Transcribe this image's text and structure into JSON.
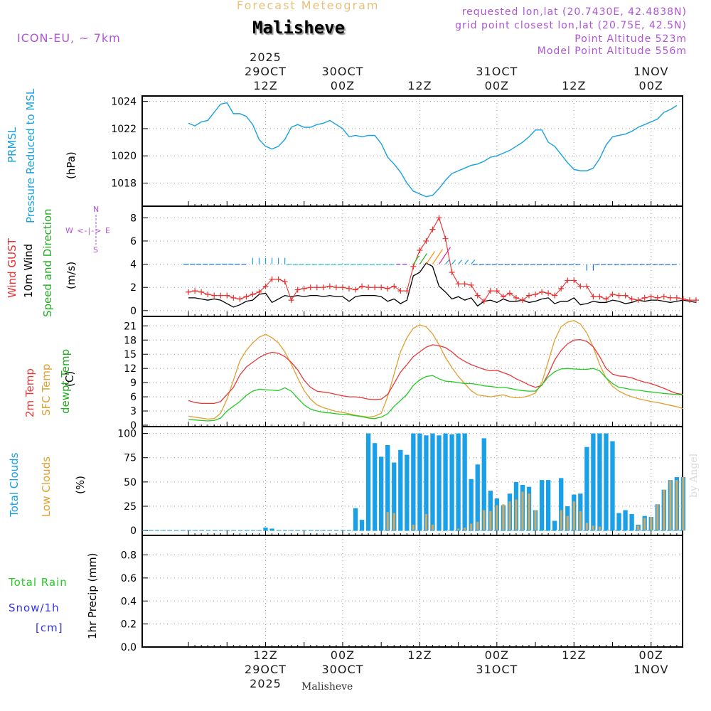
{
  "header": {
    "supertitle": "Forecast Meteogram",
    "station": "Malisheve",
    "model": "ICON-EU, ~ 7km",
    "requested": "requested lon,lat (20.7430E, 42.4838N)",
    "grid_point": "grid point closest lon,lat (20.75E, 42.5N)",
    "point_altitude": "Point Altitude 523m",
    "model_altitude": "Model Point Altitude 556m",
    "credit": "by Angel",
    "footer_station": "Malisheve"
  },
  "time_axis": {
    "top_labels": [
      {
        "h": 12,
        "lines": [
          "2025",
          "29OCT",
          "12Z"
        ]
      },
      {
        "h": 24,
        "lines": [
          "30OCT",
          "00Z"
        ]
      },
      {
        "h": 36,
        "lines": [
          "12Z"
        ]
      },
      {
        "h": 48,
        "lines": [
          "31OCT",
          "00Z"
        ]
      },
      {
        "h": 60,
        "lines": [
          "12Z"
        ]
      },
      {
        "h": 72,
        "lines": [
          "1NOV",
          "00Z"
        ]
      }
    ],
    "bottom_labels": [
      {
        "h": 12,
        "lines": [
          "12Z",
          "29OCT",
          "2025"
        ]
      },
      {
        "h": 24,
        "lines": [
          "00Z",
          "30OCT"
        ]
      },
      {
        "h": 36,
        "lines": [
          "12Z"
        ]
      },
      {
        "h": 48,
        "lines": [
          "00Z",
          "31OCT"
        ]
      },
      {
        "h": 60,
        "lines": [
          "12Z"
        ]
      },
      {
        "h": 72,
        "lines": [
          "00Z",
          "1NOV"
        ]
      }
    ]
  },
  "panel_labels": {
    "pressure": {
      "name": "PRMSL",
      "desc": "Pressure Reduced to MSL",
      "unit": "(hPa)"
    },
    "wind": {
      "gust": "Wind GUST",
      "wind10": "10m Wind",
      "dir": "Speed and Direction",
      "unit": "(m/s)",
      "compass_n": "N",
      "compass_s": "S",
      "compass_ew": "W <-|-> E"
    },
    "temp": {
      "t2m": "2m Temp",
      "sfc": "SFC Temp",
      "dew": "dewpt Temp",
      "unit": "(C)"
    },
    "clouds": {
      "total": "Total Clouds",
      "low": "Low Clouds",
      "unit": "(%)"
    },
    "precip": {
      "rain": "Total  Rain",
      "snow": "Snow/1h",
      "cm": "[cm]",
      "unit": "1hr Precip (mm)"
    }
  },
  "colors": {
    "pressure": "#19a0e0",
    "gust": "#e83030",
    "wind": "#000000",
    "t2m": "#e83838",
    "sfc": "#e0a030",
    "dew": "#22cc22",
    "total_cloud": "#1aa0e8",
    "low_cloud": "#d2a860",
    "rain": "#22cc22",
    "snow": "#3333ee",
    "compass": "#b055d5"
  },
  "chart_data": [
    {
      "type": "line",
      "title": "PRMSL Pressure Reduced to MSL",
      "ylabel": "(hPa)",
      "x_hours_from_start": [
        0,
        1,
        2,
        3,
        4,
        5,
        6,
        7,
        8,
        9,
        10,
        11,
        12,
        13,
        14,
        15,
        16,
        17,
        18,
        19,
        20,
        21,
        22,
        23,
        24,
        25,
        26,
        27,
        28,
        29,
        30,
        31,
        32,
        33,
        34,
        35,
        36,
        37,
        38,
        39,
        40,
        41,
        42,
        43,
        44,
        45,
        46,
        47,
        48,
        49,
        50,
        51,
        52,
        53,
        54,
        55,
        56,
        57,
        58,
        59,
        60,
        61,
        62,
        63,
        64,
        65,
        66,
        67,
        68,
        69,
        70,
        71,
        72,
        73,
        74,
        75,
        76
      ],
      "values": [
        1022.4,
        1022.2,
        1022.5,
        1022.6,
        1023.2,
        1023.8,
        1023.9,
        1023.1,
        1023.1,
        1022.9,
        1022.3,
        1021.2,
        1020.7,
        1020.5,
        1020.7,
        1021.2,
        1022.1,
        1022.3,
        1022.1,
        1022.1,
        1022.3,
        1022.4,
        1022.6,
        1022.3,
        1022.0,
        1021.4,
        1021.5,
        1021.4,
        1021.5,
        1021.5,
        1020.9,
        1019.9,
        1019.4,
        1018.8,
        1018.0,
        1017.4,
        1017.2,
        1017.0,
        1017.1,
        1017.6,
        1018.2,
        1018.7,
        1018.9,
        1019.1,
        1019.3,
        1019.4,
        1019.6,
        1019.9,
        1020.0,
        1020.2,
        1020.4,
        1020.7,
        1021.0,
        1021.4,
        1021.9,
        1021.9,
        1021.0,
        1020.7,
        1020.1,
        1019.5,
        1019.0,
        1018.9,
        1018.9,
        1019.1,
        1019.8,
        1020.8,
        1021.4,
        1021.5,
        1021.6,
        1021.8,
        1022.1,
        1022.3,
        1022.5,
        1022.7,
        1023.2,
        1023.4,
        1023.7
      ],
      "ylim": [
        1016.3,
        1024.4
      ],
      "yticks": [
        1018,
        1020,
        1022,
        1024
      ]
    },
    {
      "type": "line",
      "title": "Wind GUST / 10m Wind Speed and Direction",
      "ylabel": "(m/s)",
      "gust": [
        1.6,
        1.7,
        1.6,
        1.4,
        1.3,
        1.3,
        1.3,
        1.1,
        1.0,
        1.2,
        1.4,
        1.6,
        2.1,
        2.7,
        2.7,
        2.5,
        0.9,
        1.8,
        1.9,
        2.0,
        2.0,
        2.0,
        2.1,
        2.0,
        2.0,
        1.9,
        1.8,
        2.1,
        2.0,
        2.0,
        2.0,
        1.9,
        2.1,
        1.7,
        1.7,
        3.8,
        5.2,
        6.0,
        7.0,
        8.0,
        6.2,
        3.3,
        2.3,
        2.3,
        2.2,
        1.3,
        0.8,
        1.7,
        1.7,
        1.2,
        1.5,
        1.1,
        0.9,
        1.3,
        1.4,
        1.6,
        1.5,
        1.3,
        1.9,
        2.6,
        2.6,
        2.1,
        2.1,
        1.2,
        1.2,
        1.0,
        1.4,
        1.3,
        1.3,
        1.0,
        0.9,
        1.1,
        1.2,
        1.1,
        1.2,
        1.1,
        1.1,
        1.0,
        0.9,
        0.9
      ],
      "wind10": [
        1.1,
        1.1,
        1.0,
        0.9,
        1.0,
        0.9,
        0.6,
        0.3,
        0.5,
        0.8,
        0.9,
        1.4,
        1.5,
        0.7,
        1.0,
        1.3,
        1.2,
        1.3,
        1.2,
        1.3,
        1.3,
        1.2,
        1.3,
        1.2,
        1.2,
        0.8,
        1.2,
        1.3,
        1.3,
        1.3,
        1.2,
        0.8,
        1.0,
        0.6,
        0.9,
        3.0,
        3.3,
        4.1,
        3.8,
        2.1,
        1.6,
        1.0,
        1.2,
        0.9,
        1.1,
        0.4,
        0.8,
        0.9,
        0.7,
        1.0,
        0.8,
        0.8,
        0.9,
        0.7,
        0.8,
        1.0,
        1.1,
        0.6,
        0.8,
        0.8,
        1.1,
        0.5,
        0.6,
        0.8,
        0.7,
        0.7,
        0.9,
        0.8,
        0.6,
        0.7,
        0.9,
        0.8,
        0.9,
        0.9,
        0.8,
        0.7,
        0.8,
        0.9,
        0.8,
        0.7
      ],
      "ylim": [
        -0.5,
        9.0
      ],
      "yticks": [
        0,
        2,
        4,
        6,
        8
      ]
    },
    {
      "type": "line",
      "title": "2m Temp / SFC Temp / dewpt Temp",
      "ylabel": "(C)",
      "t2m": [
        5.2,
        4.8,
        4.6,
        4.6,
        4.6,
        5.0,
        6.5,
        8.0,
        10.6,
        12.3,
        13.3,
        14.3,
        15.0,
        15.4,
        15.2,
        14.5,
        13.3,
        11.7,
        9.5,
        8.0,
        7.2,
        7.0,
        6.8,
        6.5,
        6.2,
        6.0,
        6.0,
        5.8,
        5.5,
        5.4,
        5.5,
        6.5,
        8.8,
        11.2,
        12.8,
        14.5,
        15.5,
        16.5,
        17.0,
        16.8,
        16.4,
        15.5,
        14.3,
        13.5,
        12.8,
        12.3,
        11.8,
        11.5,
        11.6,
        11.1,
        10.6,
        9.8,
        9.2,
        8.5,
        8.0,
        8.4,
        10.8,
        13.8,
        15.8,
        17.2,
        18.0,
        18.1,
        17.7,
        16.6,
        14.5,
        12.0,
        10.8,
        10.4,
        10.3,
        10.0,
        9.5,
        9.1,
        8.8,
        8.3,
        7.8,
        7.2,
        6.7,
        6.5
      ],
      "sfc": [
        1.9,
        1.7,
        1.5,
        1.3,
        1.4,
        2.5,
        5.5,
        9.5,
        13.6,
        15.8,
        17.4,
        18.6,
        19.2,
        18.5,
        17.4,
        15.5,
        12.9,
        10.0,
        7.3,
        5.5,
        4.3,
        3.7,
        3.3,
        2.9,
        2.7,
        2.4,
        2.1,
        1.9,
        1.7,
        1.9,
        2.5,
        6.0,
        10.8,
        15.5,
        18.5,
        20.5,
        21.2,
        20.8,
        19.3,
        17.0,
        14.3,
        12.2,
        10.3,
        8.8,
        7.3,
        6.4,
        6.2,
        6.0,
        6.2,
        6.4,
        6.0,
        5.8,
        5.9,
        6.2,
        6.8,
        9.0,
        13.5,
        18.0,
        20.8,
        21.8,
        22.1,
        21.4,
        19.5,
        16.5,
        12.8,
        10.0,
        8.2,
        7.2,
        6.5,
        6.0,
        5.6,
        5.3,
        5.0,
        4.8,
        4.5,
        4.2,
        3.9,
        3.5
      ],
      "dew": [
        1.2,
        1.1,
        1.0,
        0.9,
        1.0,
        1.5,
        3.0,
        4.0,
        5.0,
        6.3,
        7.2,
        7.6,
        7.5,
        7.4,
        7.3,
        7.9,
        7.2,
        5.7,
        4.3,
        3.4,
        3.0,
        2.7,
        2.6,
        2.4,
        2.3,
        2.2,
        2.0,
        1.8,
        1.5,
        1.4,
        1.7,
        2.4,
        4.0,
        5.2,
        6.5,
        8.4,
        9.6,
        10.3,
        10.5,
        9.8,
        9.3,
        9.2,
        9.0,
        8.8,
        8.8,
        8.6,
        8.3,
        8.2,
        8.0,
        8.0,
        7.8,
        7.5,
        7.3,
        7.2,
        7.2,
        8.5,
        10.2,
        11.3,
        11.9,
        12.0,
        11.9,
        11.8,
        11.8,
        12.0,
        11.5,
        10.0,
        8.8,
        8.0,
        7.8,
        7.5,
        7.4,
        7.2,
        7.0,
        6.9,
        6.7,
        6.6,
        6.5,
        6.4
      ],
      "ylim": [
        -0.3,
        23.0
      ],
      "yticks": [
        0,
        3,
        6,
        9,
        12,
        15,
        18,
        21
      ]
    },
    {
      "type": "bar",
      "title": "Total Clouds / Low Clouds",
      "ylabel": "(%)",
      "total": [
        0,
        0,
        0,
        0,
        0,
        0,
        0,
        0,
        0,
        0,
        0,
        0,
        3,
        2,
        0,
        0,
        0,
        0,
        0,
        0,
        0,
        0,
        0,
        0,
        0,
        0,
        23,
        11,
        100,
        90,
        76,
        88,
        70,
        83,
        78,
        100,
        100,
        98,
        100,
        98,
        100,
        99,
        100,
        100,
        53,
        68,
        95,
        41,
        33,
        26,
        38,
        50,
        47,
        45,
        21,
        52,
        52,
        10,
        54,
        25,
        37,
        38,
        86,
        100,
        100,
        100,
        92,
        18,
        21,
        17,
        6,
        15,
        14,
        27,
        42,
        52,
        55,
        55
      ],
      "low": [
        0,
        0,
        0,
        0,
        0,
        0,
        0,
        0,
        0,
        0,
        0,
        0,
        0,
        0,
        0,
        0,
        0,
        0,
        0,
        0,
        0,
        0,
        0,
        0,
        0,
        0,
        0,
        0,
        0,
        0,
        0,
        19,
        18,
        0,
        0,
        6,
        0,
        17,
        6,
        0,
        0,
        0,
        2,
        3,
        7,
        9,
        21,
        20,
        26,
        27,
        30,
        32,
        40,
        38,
        21,
        0,
        0,
        0,
        21,
        15,
        30,
        20,
        8,
        5,
        4,
        0,
        0,
        0,
        0,
        0,
        5,
        13,
        14,
        27,
        42,
        52,
        52,
        55
      ],
      "ylim": [
        -5,
        107
      ],
      "yticks": [
        0,
        25,
        50,
        75,
        100
      ]
    },
    {
      "type": "bar",
      "title": "1hr Precip (mm)",
      "ylabel": "1hr Precip (mm)",
      "rain": [],
      "snow": [],
      "ylim": [
        0,
        0.97
      ],
      "yticks": [
        0,
        0.2,
        0.4,
        0.6,
        0.8
      ]
    }
  ]
}
